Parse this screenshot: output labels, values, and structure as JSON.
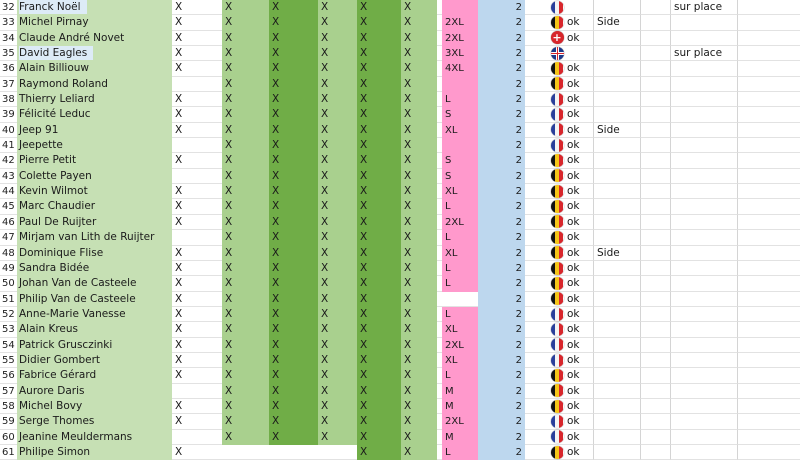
{
  "spreadsheet": {
    "colors": {
      "name_bg": "#c6e0b4",
      "name_highlight": "#ddebf7",
      "light_green": "#a9d08e",
      "dark_green": "#70ad47",
      "size_pink": "#ff99cc",
      "count_blue": "#bdd7ee"
    },
    "rows": [
      {
        "num": "32",
        "name": "Franck Noël",
        "hl": true,
        "a": "X",
        "b": "X",
        "c": "X",
        "d": "X",
        "e": "X",
        "f": "X",
        "size": "",
        "count": "2",
        "flag": "fr",
        "ok": "",
        "note": "",
        "place": "sur place"
      },
      {
        "num": "33",
        "name": "Michel Pirnay",
        "hl": false,
        "a": "X",
        "b": "X",
        "c": "X",
        "d": "X",
        "e": "X",
        "f": "X",
        "size": "2XL",
        "count": "2",
        "flag": "be",
        "ok": "ok",
        "note": "Side",
        "place": ""
      },
      {
        "num": "34",
        "name": "Claude André Novet",
        "hl": false,
        "a": "X",
        "b": "X",
        "c": "X",
        "d": "X",
        "e": "X",
        "f": "X",
        "size": "2XL",
        "count": "2",
        "flag": "ch",
        "ok": "ok",
        "note": "",
        "place": ""
      },
      {
        "num": "35",
        "name": "David Eagles",
        "hl": true,
        "a": "X",
        "b": "X",
        "c": "X",
        "d": "X",
        "e": "X",
        "f": "X",
        "size": "3XL",
        "count": "2",
        "flag": "gb",
        "ok": "",
        "note": "",
        "place": "sur place"
      },
      {
        "num": "36",
        "name": "Alain Billiouw",
        "hl": false,
        "a": "X",
        "b": "X",
        "c": "X",
        "d": "X",
        "e": "X",
        "f": "X",
        "size": "4XL",
        "count": "2",
        "flag": "be",
        "ok": "ok",
        "note": "",
        "place": ""
      },
      {
        "num": "37",
        "name": "Raymond Roland",
        "hl": false,
        "a": "",
        "b": "X",
        "c": "X",
        "d": "X",
        "e": "X",
        "f": "X",
        "size": "",
        "count": "2",
        "flag": "be",
        "ok": "ok",
        "note": "",
        "place": ""
      },
      {
        "num": "38",
        "name": "Thierry Leliard",
        "hl": false,
        "a": "X",
        "b": "X",
        "c": "X",
        "d": "X",
        "e": "X",
        "f": "X",
        "size": "L",
        "count": "2",
        "flag": "fr",
        "ok": "ok",
        "note": "",
        "place": ""
      },
      {
        "num": "39",
        "name": "Félicité Leduc",
        "hl": false,
        "a": "X",
        "b": "X",
        "c": "X",
        "d": "X",
        "e": "X",
        "f": "X",
        "size": "S",
        "count": "2",
        "flag": "fr",
        "ok": "ok",
        "note": "",
        "place": ""
      },
      {
        "num": "40",
        "name": "Jeep 91",
        "hl": false,
        "a": "X",
        "b": "X",
        "c": "X",
        "d": "X",
        "e": "X",
        "f": "X",
        "size": "XL",
        "count": "2",
        "flag": "fr",
        "ok": "ok",
        "note": "Side",
        "place": ""
      },
      {
        "num": "41",
        "name": "Jeepette",
        "hl": false,
        "a": "",
        "b": "X",
        "c": "X",
        "d": "X",
        "e": "X",
        "f": "X",
        "size": "",
        "count": "2",
        "flag": "fr",
        "ok": "ok",
        "note": "",
        "place": ""
      },
      {
        "num": "42",
        "name": "Pierre Petit",
        "hl": false,
        "a": "X",
        "b": "X",
        "c": "X",
        "d": "X",
        "e": "X",
        "f": "X",
        "size": "S",
        "count": "2",
        "flag": "be",
        "ok": "ok",
        "note": "",
        "place": ""
      },
      {
        "num": "43",
        "name": "Colette Payen",
        "hl": false,
        "a": "",
        "b": "X",
        "c": "X",
        "d": "X",
        "e": "X",
        "f": "X",
        "size": "S",
        "count": "2",
        "flag": "be",
        "ok": "ok",
        "note": "",
        "place": ""
      },
      {
        "num": "44",
        "name": "Kevin Wilmot",
        "hl": false,
        "a": "X",
        "b": "X",
        "c": "X",
        "d": "X",
        "e": "X",
        "f": "X",
        "size": "XL",
        "count": "2",
        "flag": "be",
        "ok": "ok",
        "note": "",
        "place": ""
      },
      {
        "num": "45",
        "name": "Marc Chaudier",
        "hl": false,
        "a": "X",
        "b": "X",
        "c": "X",
        "d": "X",
        "e": "X",
        "f": "X",
        "size": "L",
        "count": "2",
        "flag": "be",
        "ok": "ok",
        "note": "",
        "place": ""
      },
      {
        "num": "46",
        "name": "Paul De Ruijter",
        "hl": false,
        "a": "X",
        "b": "X",
        "c": "X",
        "d": "X",
        "e": "X",
        "f": "X",
        "size": "2XL",
        "count": "2",
        "flag": "be",
        "ok": "ok",
        "note": "",
        "place": ""
      },
      {
        "num": "47",
        "name": "Mirjam van Lith de Ruijter",
        "hl": false,
        "a": "",
        "b": "X",
        "c": "X",
        "d": "X",
        "e": "X",
        "f": "X",
        "size": "L",
        "count": "2",
        "flag": "be",
        "ok": "ok",
        "note": "",
        "place": ""
      },
      {
        "num": "48",
        "name": "Dominique Flise",
        "hl": false,
        "a": "X",
        "b": "X",
        "c": "X",
        "d": "X",
        "e": "X",
        "f": "X",
        "size": "XL",
        "count": "2",
        "flag": "be",
        "ok": "ok",
        "note": "Side",
        "place": ""
      },
      {
        "num": "49",
        "name": "Sandra Bidée",
        "hl": false,
        "a": "X",
        "b": "X",
        "c": "X",
        "d": "X",
        "e": "X",
        "f": "X",
        "size": "L",
        "count": "2",
        "flag": "be",
        "ok": "ok",
        "note": "",
        "place": ""
      },
      {
        "num": "50",
        "name": "Johan Van de Casteele",
        "hl": false,
        "a": "X",
        "b": "X",
        "c": "X",
        "d": "X",
        "e": "X",
        "f": "X",
        "size": "L",
        "count": "2",
        "flag": "be",
        "ok": "ok",
        "note": "",
        "place": ""
      },
      {
        "num": "51",
        "name": "Philip Van de Casteele",
        "hl": false,
        "a": "X",
        "b": "X",
        "c": "X",
        "d": "X",
        "e": "X",
        "f": "X",
        "size": "",
        "size_empty": true,
        "count": "2",
        "flag": "be",
        "ok": "ok",
        "note": "",
        "place": ""
      },
      {
        "num": "52",
        "name": "Anne-Marie Vanesse",
        "hl": false,
        "a": "X",
        "b": "X",
        "c": "X",
        "d": "X",
        "e": "X",
        "f": "X",
        "size": "L",
        "count": "2",
        "flag": "fr",
        "ok": "ok",
        "note": "",
        "place": ""
      },
      {
        "num": "53",
        "name": "Alain Kreus",
        "hl": false,
        "a": "X",
        "b": "X",
        "c": "X",
        "d": "X",
        "e": "X",
        "f": "X",
        "size": "XL",
        "count": "2",
        "flag": "fr",
        "ok": "ok",
        "note": "",
        "place": ""
      },
      {
        "num": "54",
        "name": "Patrick Grusczinki",
        "hl": false,
        "a": "X",
        "b": "X",
        "c": "X",
        "d": "X",
        "e": "X",
        "f": "X",
        "size": "2XL",
        "count": "2",
        "flag": "fr",
        "ok": "ok",
        "note": "",
        "place": ""
      },
      {
        "num": "55",
        "name": "Didier Gombert",
        "hl": false,
        "a": "X",
        "b": "X",
        "c": "X",
        "d": "X",
        "e": "X",
        "f": "X",
        "size": "XL",
        "count": "2",
        "flag": "fr",
        "ok": "ok",
        "note": "",
        "place": ""
      },
      {
        "num": "56",
        "name": "Fabrice Gérard",
        "hl": false,
        "a": "X",
        "b": "X",
        "c": "X",
        "d": "X",
        "e": "X",
        "f": "X",
        "size": "L",
        "count": "2",
        "flag": "be",
        "ok": "ok",
        "note": "",
        "place": ""
      },
      {
        "num": "57",
        "name": "Aurore Daris",
        "hl": false,
        "a": "",
        "b": "X",
        "c": "X",
        "d": "X",
        "e": "X",
        "f": "X",
        "size": "M",
        "count": "2",
        "flag": "be",
        "ok": "ok",
        "note": "",
        "place": ""
      },
      {
        "num": "58",
        "name": "Michel Bovy",
        "hl": false,
        "a": "X",
        "b": "X",
        "c": "X",
        "d": "X",
        "e": "X",
        "f": "X",
        "size": "M",
        "count": "2",
        "flag": "be",
        "ok": "ok",
        "note": "",
        "place": ""
      },
      {
        "num": "59",
        "name": "Serge Thomes",
        "hl": false,
        "a": "X",
        "b": "X",
        "c": "X",
        "d": "X",
        "e": "X",
        "f": "X",
        "size": "2XL",
        "count": "2",
        "flag": "fr",
        "ok": "ok",
        "note": "",
        "place": ""
      },
      {
        "num": "60",
        "name": "Jeanine Meuldermans",
        "hl": false,
        "a": "",
        "b": "X",
        "c": "X",
        "d": "X",
        "e": "X",
        "f": "X",
        "size": "M",
        "count": "2",
        "flag": "fr",
        "ok": "ok",
        "note": "",
        "place": ""
      },
      {
        "num": "61",
        "name": "Philipe Simon",
        "hl": false,
        "a": "X",
        "b": "",
        "c": "",
        "d": "",
        "e": "X",
        "f": "X",
        "size": "L",
        "count": "2",
        "flag": "be",
        "ok": "ok",
        "note": "",
        "place": "",
        "bcd_empty": true
      }
    ]
  }
}
